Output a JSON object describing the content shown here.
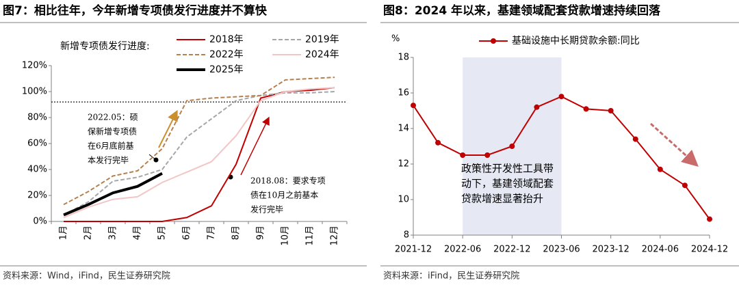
{
  "chart_data": [
    {
      "type": "line",
      "header": "图7：相比往年，今年新增专项债发行进度并不算快",
      "title": "新增专项债发行进度:",
      "source": "资料来源：Wind，iFind，民生证券研究院",
      "categories": [
        "1月",
        "2月",
        "3月",
        "4月",
        "5月",
        "6月",
        "7月",
        "8月",
        "9月",
        "10月",
        "11月",
        "12月"
      ],
      "ylim": [
        0,
        120
      ],
      "yticks": [
        {
          "value": 0,
          "label": "0%"
        },
        {
          "value": 20,
          "label": "20%"
        },
        {
          "value": 40,
          "label": "40%"
        },
        {
          "value": 60,
          "label": "60%"
        },
        {
          "value": 80,
          "label": "80%"
        },
        {
          "value": 100,
          "label": "100%"
        },
        {
          "value": 120,
          "label": "120%"
        }
      ],
      "reference_line": 92,
      "series": [
        {
          "name": "2018年",
          "color": "#c00000",
          "line_style": "solid",
          "values": [
            0,
            0,
            0,
            0,
            0,
            3,
            12,
            44,
            95,
            100,
            101,
            103
          ]
        },
        {
          "name": "2019年",
          "color": "#a6a6a6",
          "line_style": "dashed",
          "values": [
            5,
            15,
            31,
            34,
            40,
            65,
            79,
            93,
            97,
            99,
            99,
            100
          ]
        },
        {
          "name": "2022年",
          "color": "#b5804f",
          "line_style": "dashed",
          "values": [
            13,
            23,
            35,
            39,
            56,
            93,
            95,
            96,
            97,
            109,
            110,
            111
          ]
        },
        {
          "name": "2024年",
          "color": "#f2c6c6",
          "line_style": "solid",
          "values": [
            3,
            11,
            17,
            19,
            30,
            38,
            46,
            66,
            93,
            100,
            102,
            103
          ]
        },
        {
          "name": "2025年",
          "color": "#000000",
          "line_style": "thick",
          "values": [
            5,
            13,
            22,
            27,
            37,
            null,
            null,
            null,
            null,
            null,
            null,
            null
          ]
        }
      ],
      "annotations": [
        {
          "lines": [
            "2022.05：硕",
            "保新增专项债",
            "在6月底前基",
            "本发行完毕"
          ]
        },
        {
          "lines": [
            "2018.08：要求专项",
            "债在10月之前基本",
            "发行完毕"
          ]
        }
      ]
    },
    {
      "type": "line",
      "header": "图8：2024 年以来，基建领域配套贷款增速持续回落",
      "ylabel": "%",
      "source": "资料来源：iFind，民生证券研究院",
      "x": [
        "2021-12",
        "2022-03",
        "2022-06",
        "2022-09",
        "2022-12",
        "2023-03",
        "2023-06",
        "2023-09",
        "2023-12",
        "2024-03",
        "2024-06",
        "2024-09",
        "2024-12"
      ],
      "xticks": [
        "2021-12",
        "2022-06",
        "2022-12",
        "2023-06",
        "2023-12",
        "2024-06",
        "2024-12"
      ],
      "ylim": [
        8,
        18
      ],
      "yticks": [
        8,
        10,
        12,
        14,
        16,
        18
      ],
      "shaded_range": [
        "2022-06",
        "2023-06"
      ],
      "series": [
        {
          "name": "基础设施中长期贷款余额:同比",
          "color": "#c00000",
          "line_style": "solid",
          "values": [
            15.3,
            13.2,
            12.5,
            12.5,
            13.0,
            15.2,
            15.8,
            15.1,
            15.0,
            13.4,
            11.7,
            10.8,
            8.9
          ]
        }
      ],
      "annotations": [
        {
          "lines": [
            "政策性开发性工具带",
            "动下，基建领域配套",
            "贷款增速显著抬升"
          ]
        }
      ]
    }
  ]
}
